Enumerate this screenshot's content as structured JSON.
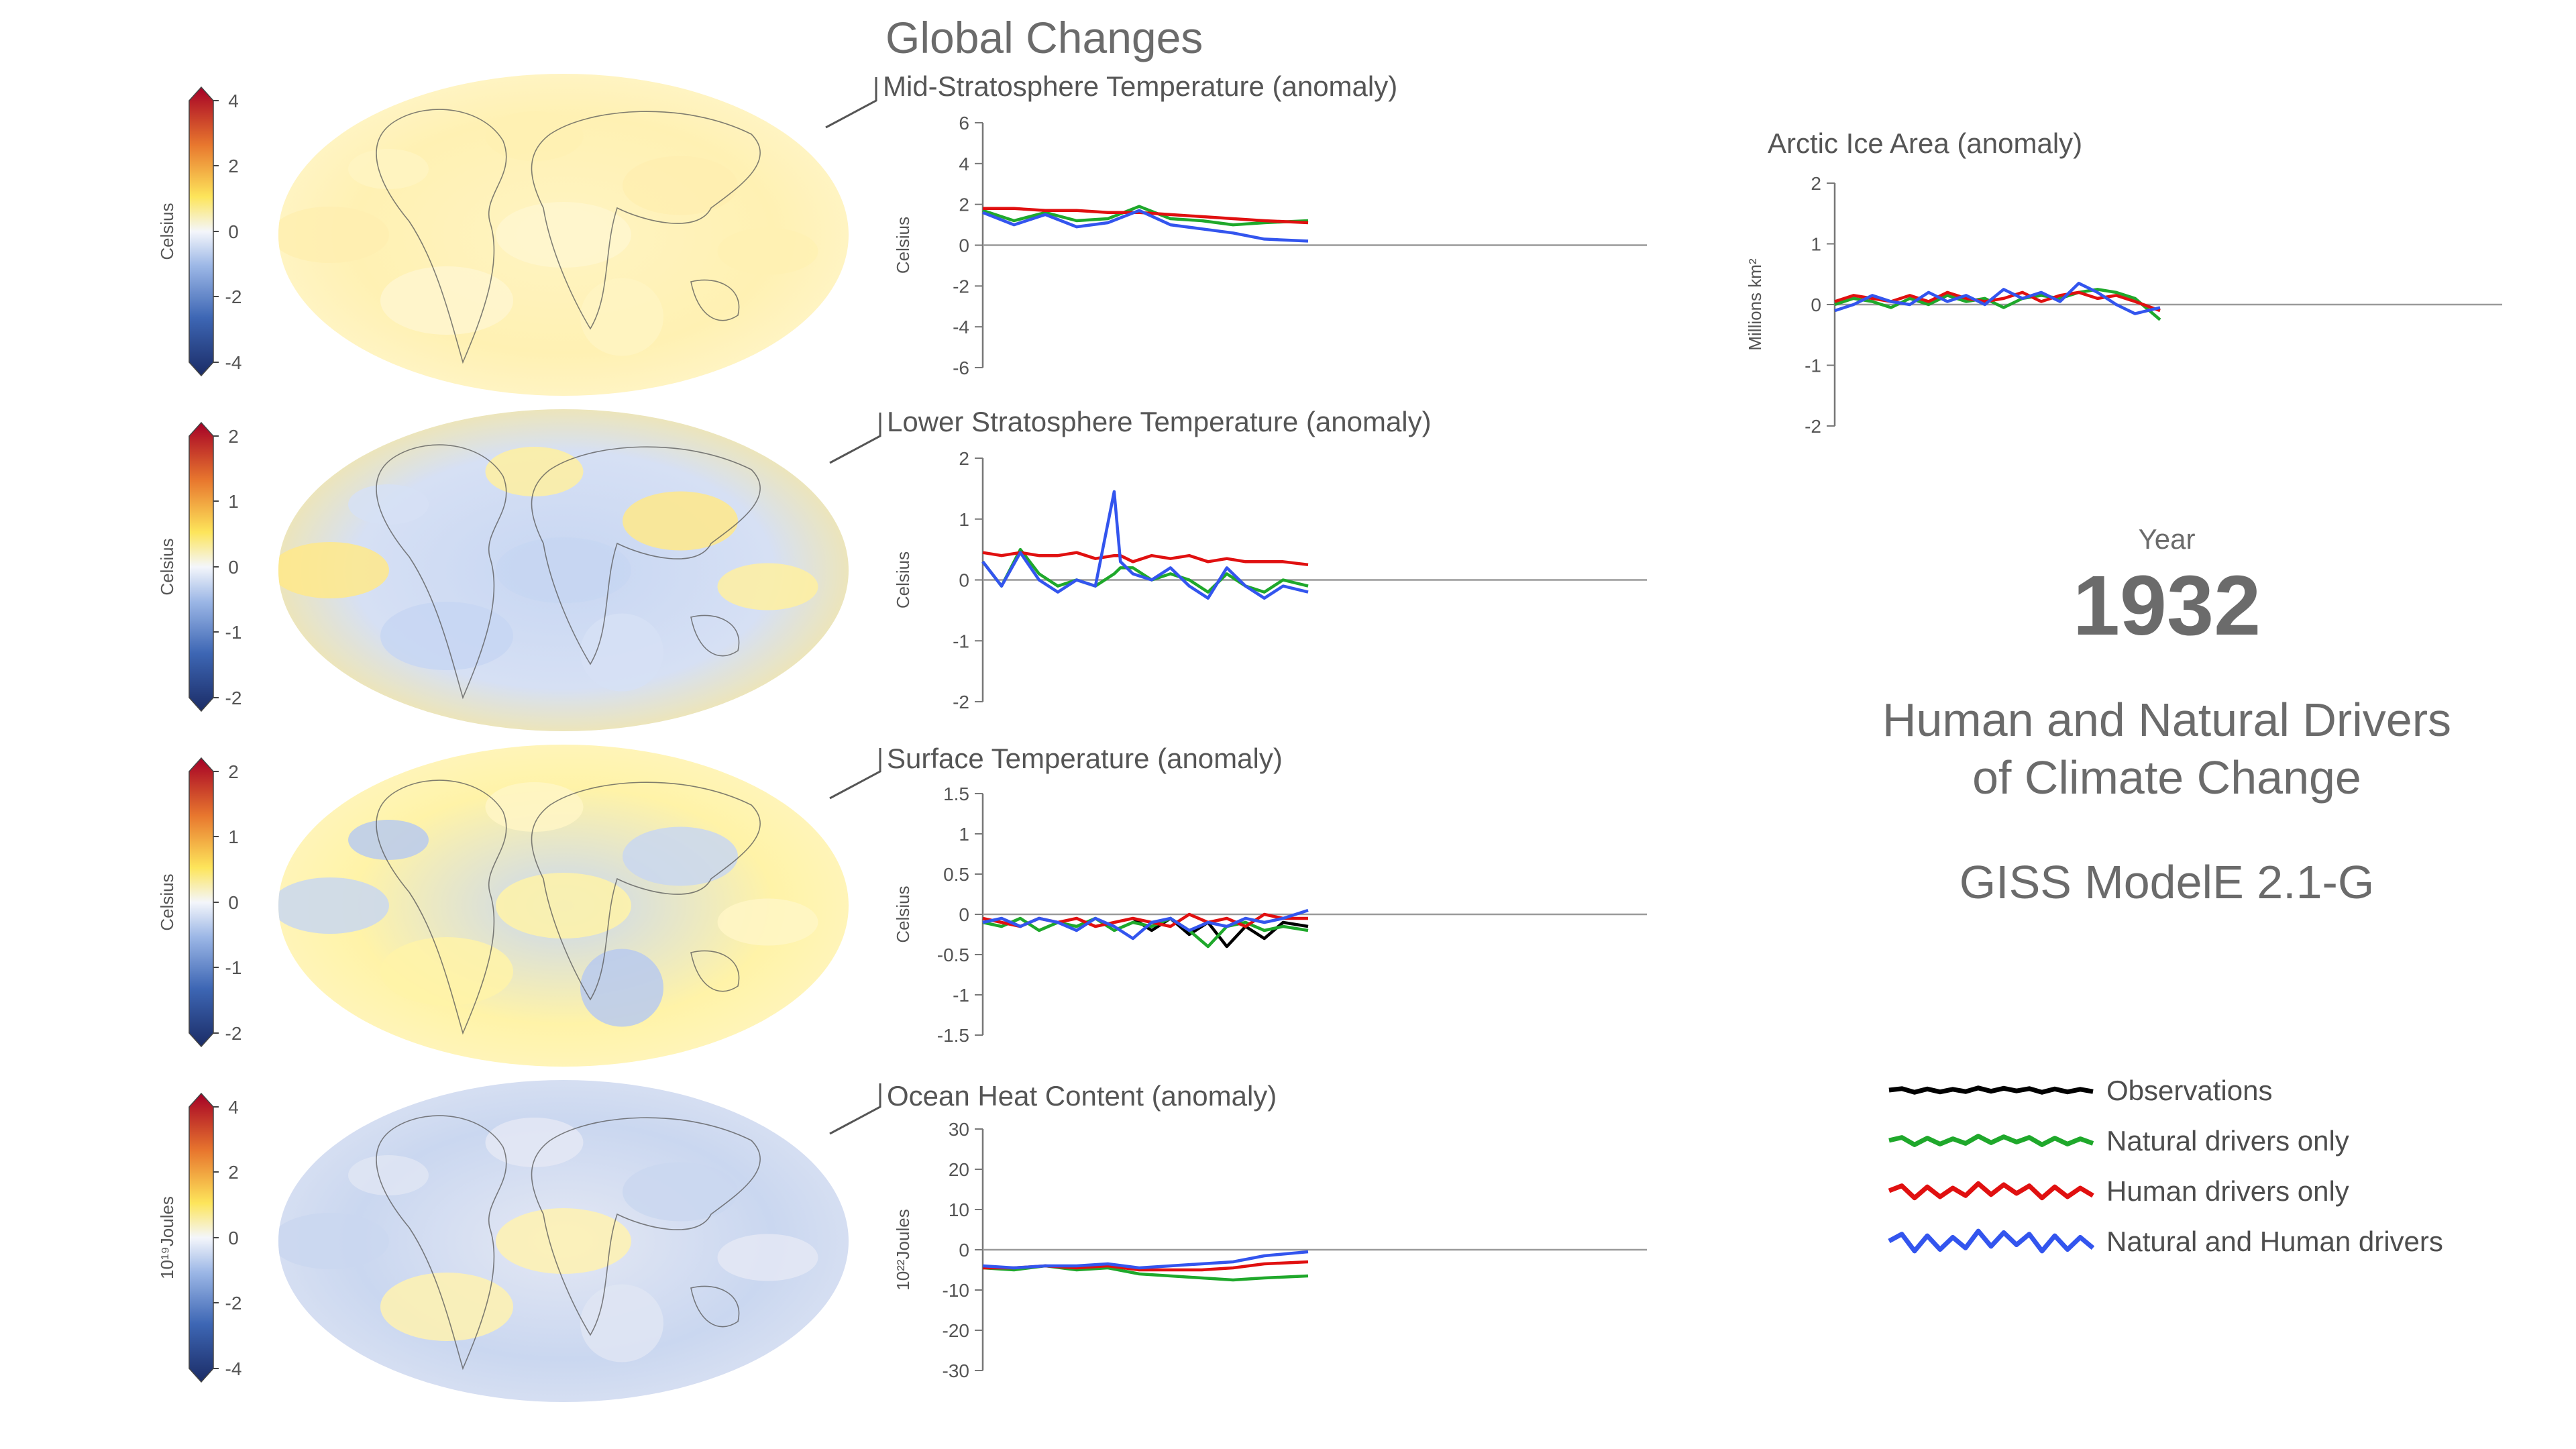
{
  "page_title": "Global Changes",
  "year_label": "Year",
  "year_value": "1932",
  "headline_line1": "Human and Natural Drivers",
  "headline_line2": "of Climate Change",
  "model_name": "GISS ModelE 2.1-G",
  "legend": [
    {
      "label": "Observations",
      "color": "#000000"
    },
    {
      "label": "Natural drivers only",
      "color": "#1fa82b"
    },
    {
      "label": "Human drivers only",
      "color": "#e01010"
    },
    {
      "label": "Natural and Human drivers",
      "color": "#3355ee"
    }
  ],
  "colorbars": [
    {
      "label": "Celsius",
      "ticks": [
        "4",
        "2",
        "0",
        "-2",
        "-4"
      ]
    },
    {
      "label": "Celsius",
      "ticks": [
        "2",
        "1",
        "0",
        "-1",
        "-2"
      ]
    },
    {
      "label": "Celsius",
      "ticks": [
        "2",
        "1",
        "0",
        "-1",
        "-2"
      ]
    },
    {
      "label": "10¹⁹Joules",
      "ticks": [
        "4",
        "2",
        "0",
        "-2",
        "-4"
      ]
    }
  ],
  "chart_data": [
    {
      "type": "line",
      "title": "Mid-Stratosphere Temperature (anomaly)",
      "ylabel": "Celsius",
      "ylim": [
        -6,
        6
      ],
      "yticks": [
        6,
        4,
        2,
        0,
        -2,
        -4,
        -6
      ],
      "x": [
        1880,
        1885,
        1890,
        1895,
        1900,
        1905,
        1910,
        1915,
        1920,
        1925,
        1932
      ],
      "series": [
        {
          "name": "Natural drivers only",
          "values": [
            1.7,
            1.2,
            1.6,
            1.2,
            1.3,
            1.9,
            1.3,
            1.2,
            1.0,
            1.1,
            1.2
          ]
        },
        {
          "name": "Human drivers only",
          "values": [
            1.8,
            1.8,
            1.7,
            1.7,
            1.6,
            1.6,
            1.5,
            1.4,
            1.3,
            1.2,
            1.1
          ]
        },
        {
          "name": "Natural and Human drivers",
          "values": [
            1.6,
            1.0,
            1.5,
            0.9,
            1.1,
            1.7,
            1.0,
            0.8,
            0.6,
            0.3,
            0.2
          ]
        }
      ]
    },
    {
      "type": "line",
      "title": "Lower Stratosphere Temperature (anomaly)",
      "ylabel": "Celsius",
      "ylim": [
        -2,
        2
      ],
      "yticks": [
        2,
        1,
        0,
        -1,
        -2
      ],
      "x": [
        1880,
        1883,
        1886,
        1889,
        1892,
        1895,
        1898,
        1901,
        1902,
        1904,
        1907,
        1910,
        1913,
        1916,
        1919,
        1922,
        1925,
        1928,
        1932
      ],
      "series": [
        {
          "name": "Natural drivers only",
          "values": [
            0.3,
            -0.1,
            0.5,
            0.1,
            -0.1,
            0.0,
            -0.1,
            0.1,
            0.2,
            0.2,
            0.0,
            0.1,
            0.0,
            -0.2,
            0.1,
            -0.1,
            -0.2,
            0.0,
            -0.1
          ]
        },
        {
          "name": "Human drivers only",
          "values": [
            0.45,
            0.4,
            0.45,
            0.4,
            0.4,
            0.45,
            0.35,
            0.4,
            0.4,
            0.3,
            0.4,
            0.35,
            0.4,
            0.3,
            0.35,
            0.3,
            0.3,
            0.3,
            0.25
          ]
        },
        {
          "name": "Natural and Human drivers",
          "values": [
            0.3,
            -0.1,
            0.45,
            0.0,
            -0.2,
            0.0,
            -0.1,
            1.45,
            0.3,
            0.1,
            0.0,
            0.2,
            -0.1,
            -0.3,
            0.2,
            -0.1,
            -0.3,
            -0.1,
            -0.2
          ]
        }
      ]
    },
    {
      "type": "line",
      "title": "Surface Temperature (anomaly)",
      "ylabel": "Celsius",
      "ylim": [
        -1.5,
        1.5
      ],
      "yticks": [
        1.5,
        1,
        0.5,
        0,
        -0.5,
        -1,
        -1.5
      ],
      "x": [
        1880,
        1883,
        1886,
        1889,
        1892,
        1895,
        1898,
        1901,
        1904,
        1907,
        1910,
        1913,
        1916,
        1919,
        1922,
        1925,
        1928,
        1932
      ],
      "series": [
        {
          "name": "Observations",
          "values": [
            null,
            null,
            null,
            null,
            null,
            null,
            null,
            null,
            -0.05,
            -0.2,
            -0.05,
            -0.25,
            -0.1,
            -0.4,
            -0.15,
            -0.3,
            -0.1,
            -0.15
          ]
        },
        {
          "name": "Natural drivers only",
          "values": [
            -0.1,
            -0.15,
            -0.05,
            -0.2,
            -0.1,
            -0.15,
            -0.05,
            -0.2,
            -0.1,
            -0.15,
            -0.05,
            -0.2,
            -0.4,
            -0.15,
            -0.1,
            -0.2,
            -0.15,
            -0.2
          ]
        },
        {
          "name": "Human drivers only",
          "values": [
            -0.05,
            -0.1,
            -0.15,
            -0.05,
            -0.1,
            -0.05,
            -0.15,
            -0.1,
            -0.05,
            -0.1,
            -0.15,
            0.0,
            -0.1,
            -0.05,
            -0.15,
            0.0,
            -0.05,
            -0.05
          ]
        },
        {
          "name": "Natural and Human drivers",
          "values": [
            -0.1,
            -0.05,
            -0.15,
            -0.05,
            -0.1,
            -0.2,
            -0.05,
            -0.15,
            -0.3,
            -0.1,
            -0.05,
            -0.2,
            -0.1,
            -0.15,
            -0.05,
            -0.1,
            -0.05,
            0.05
          ]
        }
      ]
    },
    {
      "type": "line",
      "title": "Ocean Heat Content (anomaly)",
      "ylabel": "10²²Joules",
      "ylim": [
        -30,
        30
      ],
      "yticks": [
        30,
        20,
        10,
        0,
        -10,
        -20,
        -30
      ],
      "x": [
        1880,
        1885,
        1890,
        1895,
        1900,
        1905,
        1910,
        1915,
        1920,
        1925,
        1932
      ],
      "series": [
        {
          "name": "Natural drivers only",
          "values": [
            -4.5,
            -5,
            -4,
            -5,
            -4.5,
            -6,
            -6.5,
            -7,
            -7.5,
            -7,
            -6.5
          ]
        },
        {
          "name": "Human drivers only",
          "values": [
            -4.5,
            -4.5,
            -4,
            -4.5,
            -4,
            -5,
            -5,
            -5,
            -4.5,
            -3.5,
            -3
          ]
        },
        {
          "name": "Natural and Human drivers",
          "values": [
            -4,
            -4.5,
            -4,
            -4,
            -3.5,
            -4.5,
            -4,
            -3.5,
            -3,
            -1.5,
            -0.5
          ]
        }
      ]
    },
    {
      "type": "line",
      "title": "Arctic Ice Area (anomaly)",
      "ylabel": "Millions km²",
      "ylim": [
        -2,
        2
      ],
      "yticks": [
        2,
        1,
        0,
        -1,
        -2
      ],
      "x": [
        1880,
        1883,
        1886,
        1889,
        1892,
        1895,
        1898,
        1901,
        1904,
        1907,
        1910,
        1913,
        1916,
        1919,
        1922,
        1925,
        1928,
        1932
      ],
      "series": [
        {
          "name": "Natural drivers only",
          "values": [
            0.0,
            0.1,
            0.05,
            -0.05,
            0.1,
            0.0,
            0.15,
            0.05,
            0.1,
            -0.05,
            0.1,
            0.15,
            0.1,
            0.2,
            0.25,
            0.2,
            0.1,
            -0.25
          ]
        },
        {
          "name": "Human drivers only",
          "values": [
            0.05,
            0.15,
            0.1,
            0.05,
            0.15,
            0.05,
            0.2,
            0.1,
            0.05,
            0.1,
            0.2,
            0.05,
            0.15,
            0.2,
            0.1,
            0.15,
            0.05,
            -0.1
          ]
        },
        {
          "name": "Natural and Human drivers",
          "values": [
            -0.1,
            0.0,
            0.15,
            0.05,
            0.0,
            0.2,
            0.05,
            0.15,
            0.0,
            0.25,
            0.1,
            0.2,
            0.05,
            0.35,
            0.2,
            0.0,
            -0.15,
            -0.05
          ]
        }
      ]
    }
  ]
}
